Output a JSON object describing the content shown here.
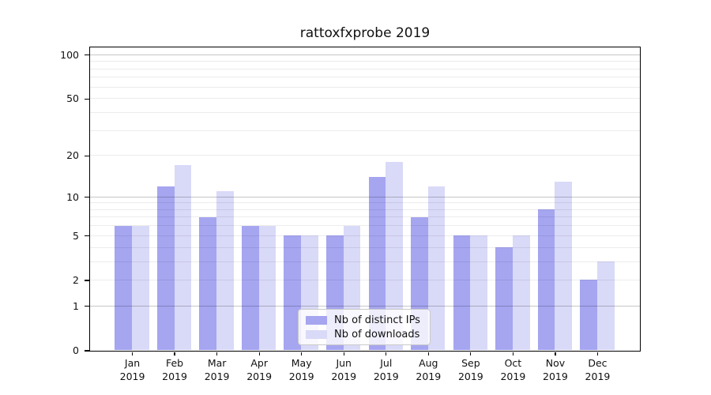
{
  "chart_data": {
    "type": "bar",
    "title": "rattoxfxprobe 2019",
    "categories": [
      "Jan",
      "Feb",
      "Mar",
      "Apr",
      "May",
      "Jun",
      "Jul",
      "Aug",
      "Sep",
      "Oct",
      "Nov",
      "Dec"
    ],
    "category_year": "2019",
    "series": [
      {
        "name": "Nb of distinct IPs",
        "color": "#a5a5f0",
        "values": [
          6,
          12,
          7,
          6,
          5,
          5,
          14,
          7,
          5,
          4,
          8,
          2
        ]
      },
      {
        "name": "Nb of downloads",
        "color": "#d9d9f8",
        "values": [
          6,
          17,
          11,
          6,
          5,
          6,
          18,
          12,
          5,
          5,
          13,
          3
        ]
      }
    ],
    "xlabel": "",
    "ylabel": "",
    "yscale": "log1p",
    "ylim": [
      0,
      113
    ],
    "yticks": [
      0,
      1,
      2,
      5,
      10,
      20,
      50,
      100
    ],
    "gridlines": {
      "major": [
        1,
        10,
        100
      ],
      "minor": [
        2,
        3,
        4,
        5,
        6,
        7,
        8,
        9,
        20,
        30,
        40,
        50,
        60,
        70,
        80,
        90
      ]
    },
    "grid": true,
    "legend_position": "lower center"
  }
}
